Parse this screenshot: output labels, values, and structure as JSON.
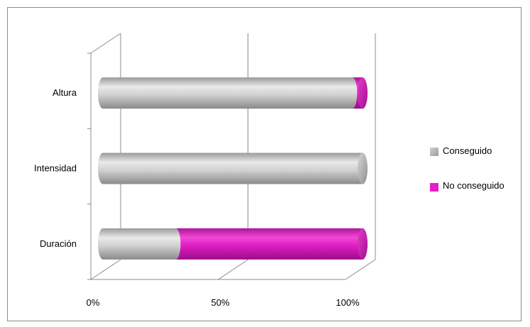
{
  "chart_data": {
    "type": "bar",
    "orientation": "horizontal",
    "stacked": "percent",
    "style": "3d-cylinder",
    "categories": [
      "Duración",
      "Intensidad",
      "Altura"
    ],
    "series": [
      {
        "name": "Conseguido",
        "values": [
          28,
          100,
          96
        ],
        "color": "#bfbfbf"
      },
      {
        "name": "No conseguido",
        "values": [
          72,
          0,
          4
        ],
        "color": "#e61ec8"
      }
    ],
    "x_ticks": [
      "0%",
      "50%",
      "100%"
    ],
    "xlim": [
      0,
      100
    ],
    "grid": true,
    "legend": "right"
  },
  "colors": {
    "conseguido": "#bfbfbf",
    "no_conseguido": "#e61ec8",
    "axis": "#8c8c8c"
  }
}
